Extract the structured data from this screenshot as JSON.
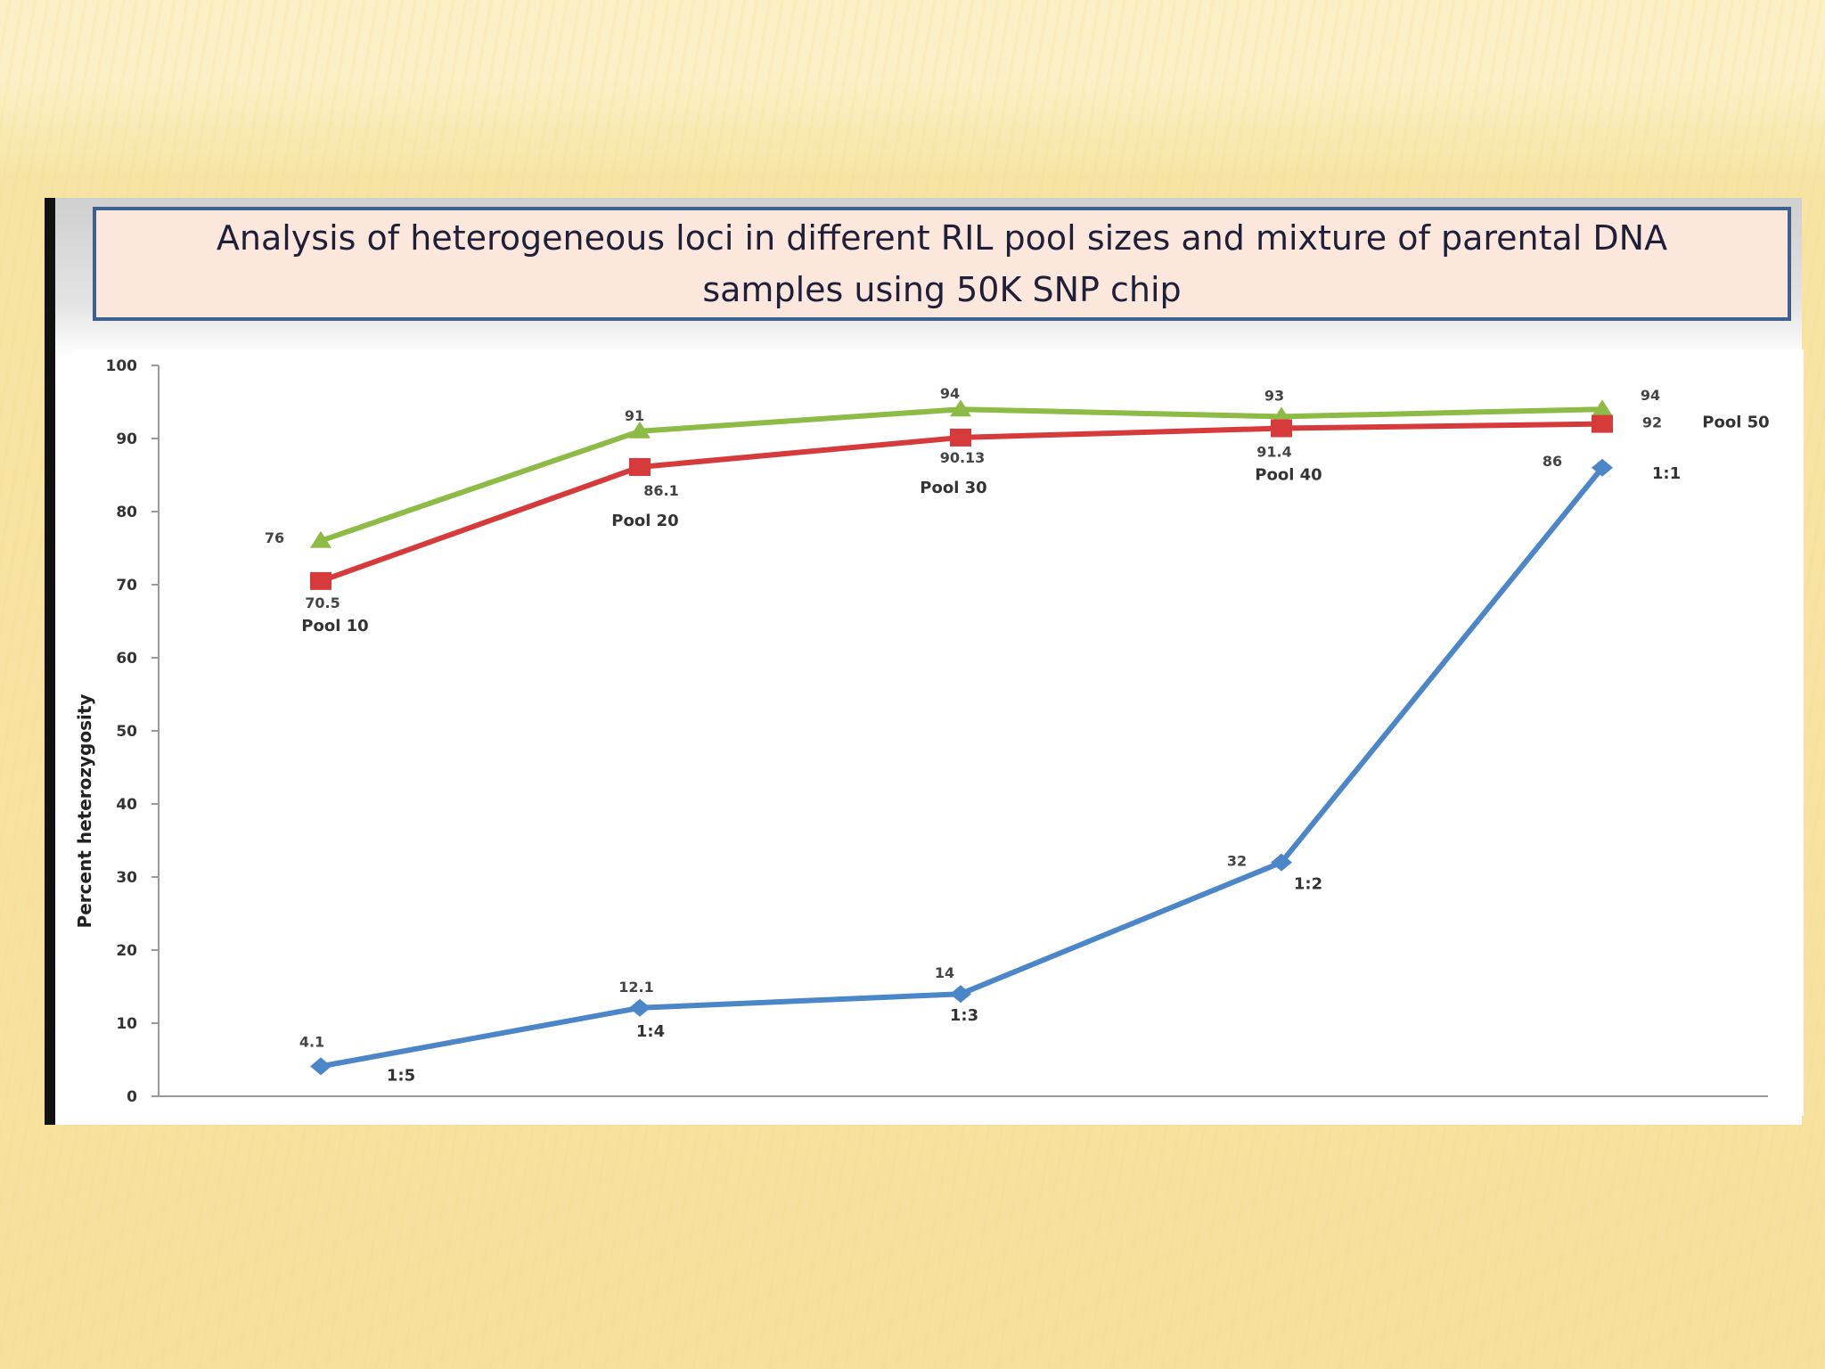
{
  "slide": {
    "title": "Analysis of heterogeneous loci in different RIL pool sizes and mixture of parental  DNA samples using 50K SNP chip"
  },
  "chart_data": {
    "type": "line",
    "ylabel": "Percent heterozygosity",
    "xlabel": "",
    "ylim": [
      0,
      100
    ],
    "yticks": [
      0,
      10,
      20,
      30,
      40,
      50,
      60,
      70,
      80,
      90,
      100
    ],
    "grid": false,
    "series": [
      {
        "color": "#8dbb46",
        "marker": "triangle",
        "values": [
          76,
          91,
          94,
          93,
          94
        ],
        "value_labels": [
          "76",
          "91",
          "94",
          "93",
          "94"
        ]
      },
      {
        "color": "#d63a3a",
        "marker": "square",
        "values": [
          70.5,
          86.1,
          90.13,
          91.4,
          92
        ],
        "value_labels": [
          "70.5",
          "86.1",
          "90.13",
          "91.4",
          "92"
        ],
        "point_labels": [
          "Pool 10",
          "Pool 20",
          "Pool 30",
          "Pool 40",
          "Pool 50"
        ]
      },
      {
        "color": "#4a86c8",
        "marker": "diamond",
        "values": [
          4.1,
          12.1,
          14,
          32,
          86
        ],
        "value_labels": [
          "4.1",
          "12.1",
          "14",
          "32",
          "86"
        ],
        "point_labels": [
          "1:5",
          "1:4",
          "1:3",
          "1:2",
          "1:1"
        ]
      }
    ]
  }
}
